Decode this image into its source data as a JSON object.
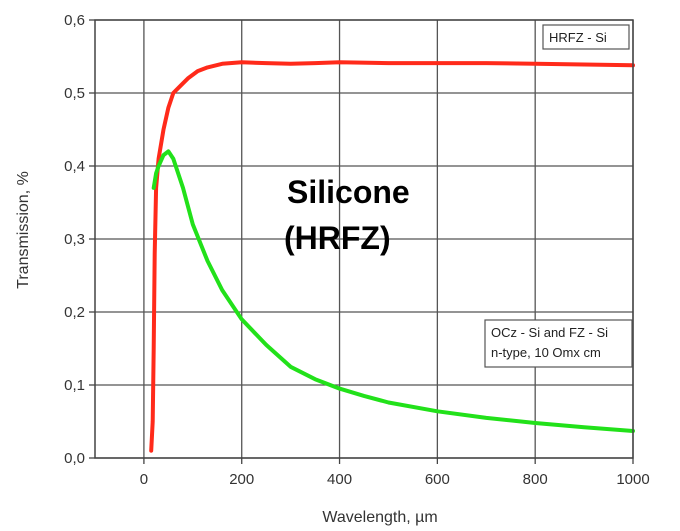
{
  "chart_data": {
    "type": "line",
    "title": "",
    "xlabel": "Wavelength, µm",
    "ylabel": "Transmission, %",
    "xlim": [
      -100,
      1000
    ],
    "ylim": [
      0,
      0.6
    ],
    "x_ticks": [
      0,
      200,
      400,
      600,
      800,
      1000
    ],
    "x_tick_labels": [
      "0",
      "200",
      "400",
      "600",
      "800",
      "1000"
    ],
    "y_ticks": [
      0,
      0.1,
      0.2,
      0.3,
      0.4,
      0.5,
      0.6
    ],
    "y_tick_labels": [
      "0,0",
      "0,1",
      "0,2",
      "0,3",
      "0,4",
      "0,5",
      "0,6"
    ],
    "grid": true,
    "annotation": [
      "Silicone",
      "(HRFZ)"
    ],
    "series": [
      {
        "name": "HRFZ - Si",
        "color": "#ff2a1a",
        "x": [
          15,
          18,
          20,
          22,
          25,
          30,
          40,
          50,
          60,
          75,
          90,
          110,
          130,
          160,
          200,
          250,
          300,
          350,
          400,
          500,
          600,
          700,
          800,
          900,
          1000
        ],
        "y": [
          0.01,
          0.05,
          0.15,
          0.28,
          0.37,
          0.41,
          0.45,
          0.48,
          0.5,
          0.51,
          0.52,
          0.53,
          0.535,
          0.54,
          0.542,
          0.541,
          0.54,
          0.541,
          0.542,
          0.541,
          0.541,
          0.541,
          0.54,
          0.539,
          0.538
        ]
      },
      {
        "name": "OCz - Si and FZ - Si n-type, 10 Omx cm",
        "color": "#22e11a",
        "x": [
          20,
          25,
          30,
          40,
          50,
          60,
          80,
          100,
          130,
          160,
          200,
          250,
          300,
          350,
          400,
          450,
          500,
          600,
          700,
          800,
          900,
          1000
        ],
        "y": [
          0.37,
          0.39,
          0.4,
          0.415,
          0.42,
          0.41,
          0.37,
          0.32,
          0.27,
          0.23,
          0.19,
          0.155,
          0.125,
          0.108,
          0.095,
          0.085,
          0.076,
          0.064,
          0.055,
          0.048,
          0.042,
          0.037
        ]
      }
    ],
    "legend": [
      {
        "lines": [
          "HRFZ - Si"
        ],
        "series": 0
      },
      {
        "lines": [
          "OCz - Si and FZ - Si",
          "n-type, 10 Omx cm"
        ],
        "series": 1
      }
    ]
  }
}
